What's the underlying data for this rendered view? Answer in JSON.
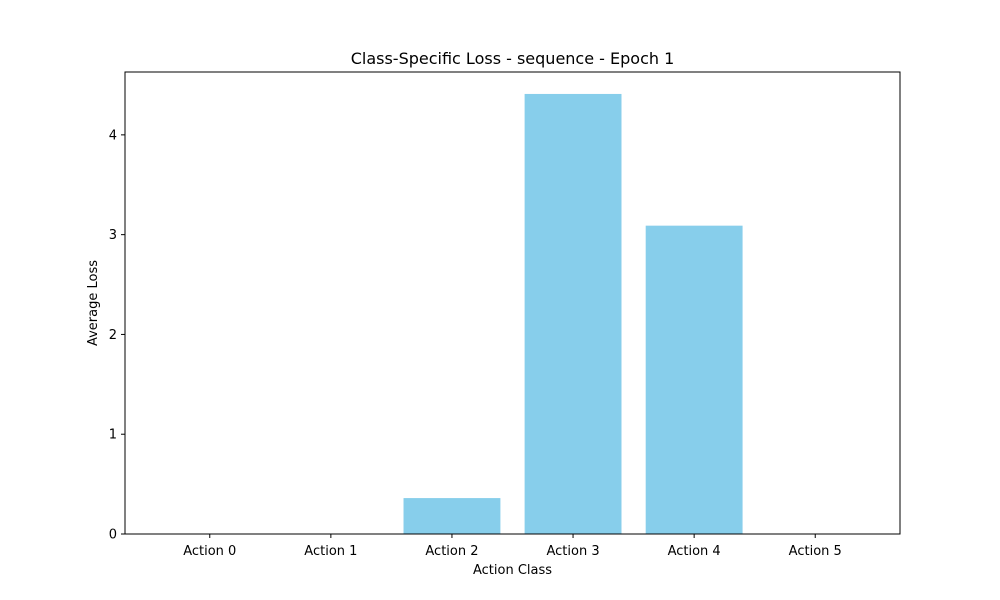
{
  "chart_data": {
    "type": "bar",
    "title": "Class-Specific Loss - sequence - Epoch 1",
    "xlabel": "Action Class",
    "ylabel": "Average Loss",
    "categories": [
      "Action 0",
      "Action 1",
      "Action 2",
      "Action 3",
      "Action 4",
      "Action 5"
    ],
    "values": [
      0,
      0,
      0.36,
      4.41,
      3.09,
      0
    ],
    "yticks": [
      0,
      1,
      2,
      3,
      4
    ],
    "ylim": [
      0,
      4.63
    ],
    "grid": false,
    "bar_color": "#87ceeb"
  }
}
